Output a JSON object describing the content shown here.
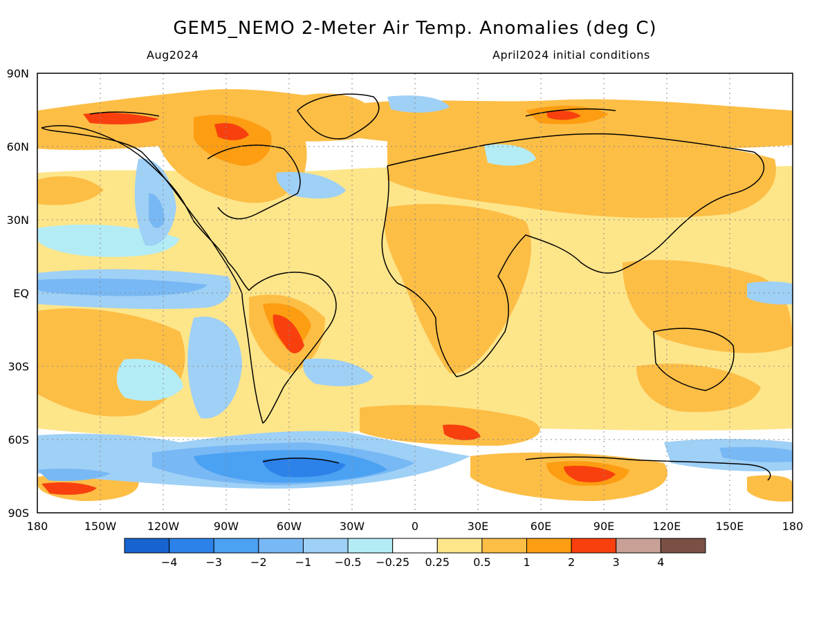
{
  "header": {
    "title": "GEM5_NEMO 2-Meter Air Temp. Anomalies (deg C)",
    "valid_month": "Aug2024",
    "init_conditions": "April2024 initial conditions"
  },
  "map": {
    "lat_labels": [
      "90N",
      "60N",
      "30N",
      "EQ",
      "30S",
      "60S",
      "90S"
    ],
    "lon_labels": [
      "180",
      "150W",
      "120W",
      "90W",
      "60W",
      "30W",
      "0",
      "30E",
      "60E",
      "90E",
      "120E",
      "150E",
      "180"
    ]
  },
  "colorbar": {
    "colors": [
      "#1764d0",
      "#2c82e8",
      "#4ba1f2",
      "#78b8f4",
      "#9fd0f6",
      "#b4ecf6",
      "#ffffff",
      "#fde58a",
      "#fdbe46",
      "#fd9d12",
      "#f8400e",
      "#c8a095",
      "#7a5045"
    ],
    "labels": [
      "−4",
      "−3",
      "−2",
      "−1",
      "−0.5",
      "−0.25",
      "0.25",
      "0.5",
      "1",
      "2",
      "3",
      "4"
    ]
  }
}
